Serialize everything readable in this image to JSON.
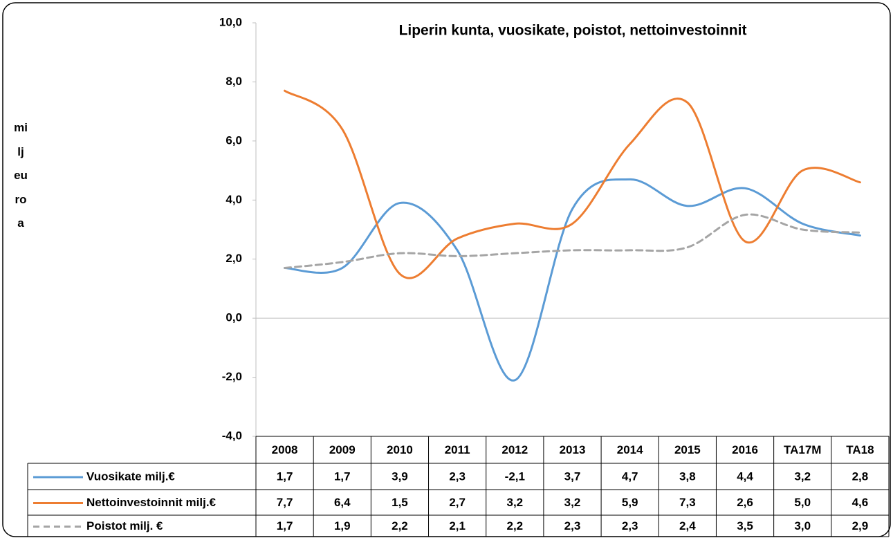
{
  "chart_data": {
    "type": "line",
    "title": "Liperin kunta, vuosikate, poistot, nettoinvestoinnit",
    "ylabel": "milj euroa",
    "categories": [
      "2008",
      "2009",
      "2010",
      "2011",
      "2012",
      "2013",
      "2014",
      "2015",
      "2016",
      "TA17M",
      "TA18"
    ],
    "series": [
      {
        "name": "Vuosikate milj.€",
        "color": "#5b9bd5",
        "dashed": false,
        "values": [
          1.7,
          1.7,
          3.9,
          2.3,
          -2.1,
          3.7,
          4.7,
          3.8,
          4.4,
          3.2,
          2.8
        ],
        "value_labels": [
          "1,7",
          "1,7",
          "3,9",
          "2,3",
          "-2,1",
          "3,7",
          "4,7",
          "3,8",
          "4,4",
          "3,2",
          "2,8"
        ]
      },
      {
        "name": "Nettoinvestoinnit milj.€",
        "color": "#ed7d31",
        "dashed": false,
        "values": [
          7.7,
          6.4,
          1.5,
          2.7,
          3.2,
          3.2,
          5.9,
          7.3,
          2.6,
          5.0,
          4.6
        ],
        "value_labels": [
          "7,7",
          "6,4",
          "1,5",
          "2,7",
          "3,2",
          "3,2",
          "5,9",
          "7,3",
          "2,6",
          "5,0",
          "4,6"
        ]
      },
      {
        "name": "Poistot milj. €",
        "color": "#a5a5a5",
        "dashed": true,
        "values": [
          1.7,
          1.9,
          2.2,
          2.1,
          2.2,
          2.3,
          2.3,
          2.4,
          3.5,
          3.0,
          2.9
        ],
        "value_labels": [
          "1,7",
          "1,9",
          "2,2",
          "2,1",
          "2,2",
          "2,3",
          "2,3",
          "2,4",
          "3,5",
          "3,0",
          "2,9"
        ]
      }
    ],
    "ylim": [
      -4,
      10
    ],
    "yticks": [
      {
        "value": -4,
        "label": "-4,0"
      },
      {
        "value": -2,
        "label": "-2,0"
      },
      {
        "value": 0,
        "label": "0,0"
      },
      {
        "value": 2,
        "label": "2,0"
      },
      {
        "value": 4,
        "label": "4,0"
      },
      {
        "value": 6,
        "label": "6,0"
      },
      {
        "value": 8,
        "label": "8,0"
      },
      {
        "value": 10,
        "label": "10,0"
      }
    ],
    "smooth": true,
    "grid": false
  }
}
